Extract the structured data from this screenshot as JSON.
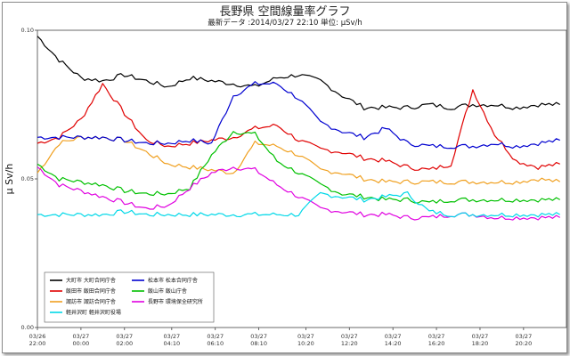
{
  "header": {
    "title": "長野県 空間線量率グラフ",
    "subtitle": "最新データ :2014/03/27 22:10  単位: μSv/h"
  },
  "chart_data": {
    "type": "line",
    "title": "長野県 空間線量率グラフ",
    "ylabel": "μ Sv/h",
    "xlabel": "",
    "ylim": [
      0.0,
      0.1
    ],
    "y_ticks": [
      "0.00",
      "0.05",
      "0.10"
    ],
    "grid": false,
    "legend_position": "bottom-left",
    "x_tick_labels": [
      {
        "date": "03/26",
        "time": "22:00"
      },
      {
        "date": "03/27",
        "time": "00:00"
      },
      {
        "date": "03/27",
        "time": "02:00"
      },
      {
        "date": "03/27",
        "time": "04:10"
      },
      {
        "date": "03/27",
        "time": "06:10"
      },
      {
        "date": "03/27",
        "time": "08:10"
      },
      {
        "date": "03/27",
        "time": "10:20"
      },
      {
        "date": "03/27",
        "time": "12:20"
      },
      {
        "date": "03/27",
        "time": "14:20"
      },
      {
        "date": "03/27",
        "time": "16:20"
      },
      {
        "date": "03/27",
        "time": "18:20"
      },
      {
        "date": "03/27",
        "time": "20:20"
      }
    ],
    "x_hours": [
      0,
      1,
      2,
      3,
      4,
      5,
      6,
      7,
      8,
      9,
      10,
      11,
      12,
      13,
      14,
      15,
      16,
      17,
      18,
      19,
      20,
      21,
      22,
      23,
      24
    ],
    "series": [
      {
        "name": "大町市  大町合同庁舎",
        "color": "#000000",
        "values": [
          0.098,
          0.09,
          0.084,
          0.083,
          0.085,
          0.083,
          0.081,
          0.084,
          0.083,
          0.082,
          0.081,
          0.084,
          0.085,
          0.083,
          0.078,
          0.074,
          0.074,
          0.074,
          0.075,
          0.074,
          0.075,
          0.075,
          0.074,
          0.075,
          0.075
        ]
      },
      {
        "name": "飯田市  飯田合同庁舎",
        "color": "#e00000",
        "values": [
          0.062,
          0.064,
          0.07,
          0.082,
          0.072,
          0.063,
          0.061,
          0.062,
          0.063,
          0.064,
          0.067,
          0.068,
          0.063,
          0.06,
          0.059,
          0.057,
          0.056,
          0.054,
          0.053,
          0.055,
          0.08,
          0.065,
          0.056,
          0.054,
          0.055
        ]
      },
      {
        "name": "諏訪市  諏訪合同庁舎",
        "color": "#f0a020",
        "values": [
          0.052,
          0.062,
          0.064,
          0.064,
          0.063,
          0.059,
          0.055,
          0.054,
          0.053,
          0.052,
          0.062,
          0.061,
          0.058,
          0.053,
          0.052,
          0.05,
          0.049,
          0.049,
          0.049,
          0.049,
          0.049,
          0.049,
          0.049,
          0.05,
          0.049
        ]
      },
      {
        "name": "松本市  松本合同庁舎",
        "color": "#0000d0",
        "values": [
          0.064,
          0.064,
          0.064,
          0.064,
          0.063,
          0.062,
          0.062,
          0.063,
          0.062,
          0.078,
          0.082,
          0.082,
          0.077,
          0.069,
          0.066,
          0.064,
          0.067,
          0.062,
          0.061,
          0.061,
          0.061,
          0.062,
          0.061,
          0.062,
          0.063
        ]
      },
      {
        "name": "飯山市  飯山庁舎",
        "color": "#00c000",
        "values": [
          0.055,
          0.05,
          0.049,
          0.048,
          0.046,
          0.045,
          0.045,
          0.047,
          0.058,
          0.066,
          0.065,
          0.056,
          0.052,
          0.048,
          0.045,
          0.044,
          0.043,
          0.043,
          0.042,
          0.043,
          0.043,
          0.043,
          0.043,
          0.043,
          0.043
        ]
      },
      {
        "name": "長野市  環境保全研究所",
        "color": "#e000e0",
        "values": [
          0.054,
          0.048,
          0.046,
          0.044,
          0.042,
          0.04,
          0.041,
          0.047,
          0.052,
          0.054,
          0.053,
          0.048,
          0.044,
          0.04,
          0.039,
          0.038,
          0.038,
          0.037,
          0.037,
          0.038,
          0.038,
          0.037,
          0.037,
          0.037,
          0.037
        ]
      },
      {
        "name": "軽井沢町  軽井沢町役場",
        "color": "#00d8e8",
        "values": [
          0.038,
          0.038,
          0.038,
          0.038,
          0.039,
          0.038,
          0.038,
          0.038,
          0.038,
          0.038,
          0.038,
          0.038,
          0.038,
          0.045,
          0.044,
          0.043,
          0.044,
          0.045,
          0.039,
          0.038,
          0.038,
          0.038,
          0.038,
          0.038,
          0.038
        ]
      }
    ],
    "legend_order": [
      0,
      3,
      1,
      4,
      2,
      5,
      6
    ]
  }
}
